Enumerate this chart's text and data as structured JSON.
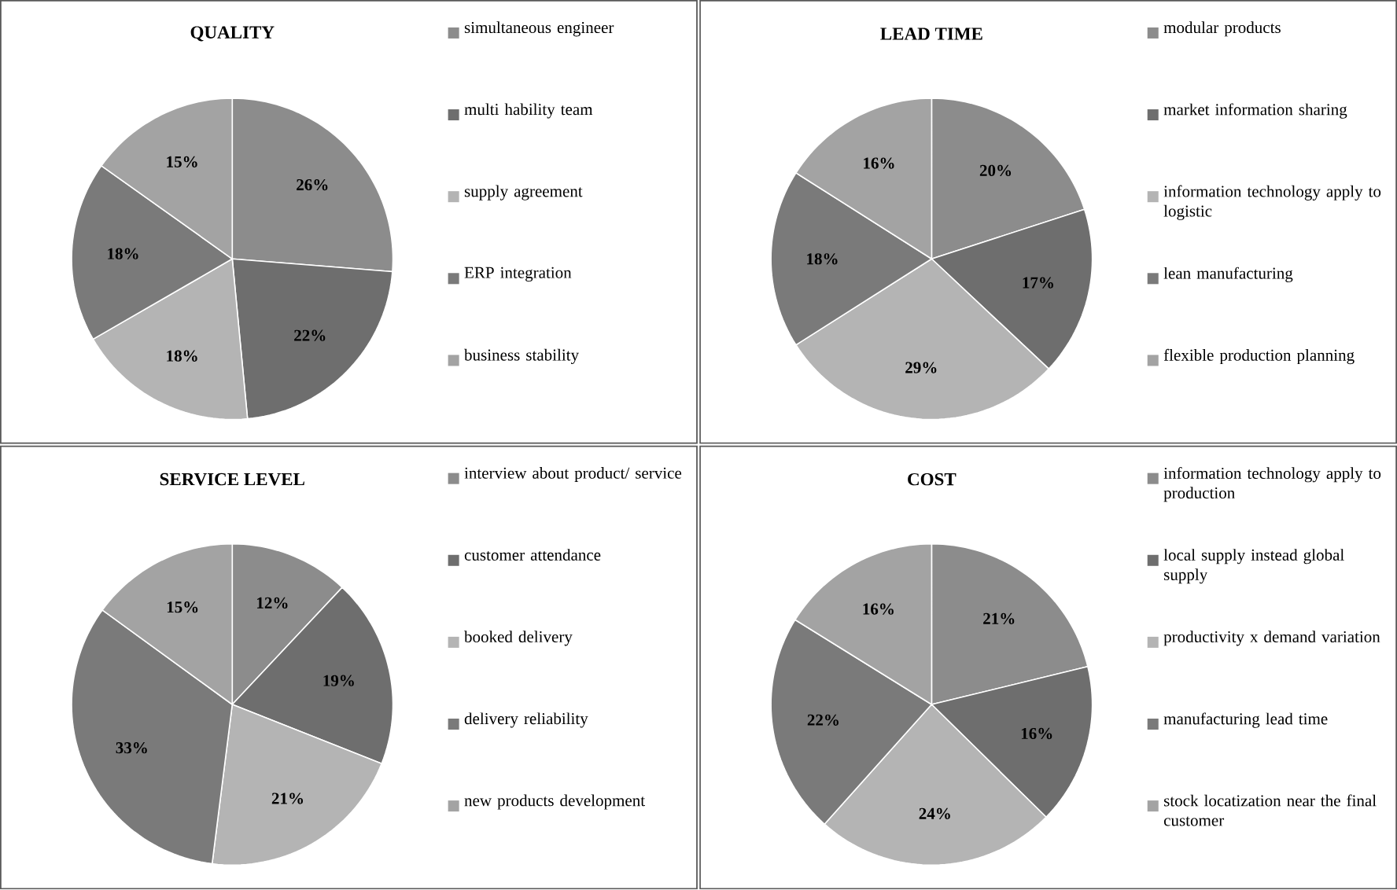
{
  "chart_data": [
    {
      "type": "pie",
      "title": "QUALITY",
      "categories": [
        "simultaneous engineer",
        "multi hability team",
        "supply agreement",
        "ERP integration",
        "business stability"
      ],
      "values": [
        26,
        22,
        18,
        18,
        15
      ],
      "value_labels": [
        "26%",
        "22%",
        "18%",
        "18%",
        "15%"
      ],
      "colors": [
        "#8c8c8c",
        "#6e6e6e",
        "#b4b4b4",
        "#7a7a7a",
        "#a3a3a3"
      ],
      "legend": "right"
    },
    {
      "type": "pie",
      "title": "LEAD TIME",
      "categories": [
        "modular products",
        "market information sharing",
        "information technology apply to logistic",
        "lean manufacturing",
        "flexible production planning"
      ],
      "values": [
        20,
        17,
        29,
        18,
        16
      ],
      "value_labels": [
        "20%",
        "17%",
        "29%",
        "18%",
        "16%"
      ],
      "colors": [
        "#8c8c8c",
        "#6e6e6e",
        "#b4b4b4",
        "#7a7a7a",
        "#a3a3a3"
      ],
      "legend": "right"
    },
    {
      "type": "pie",
      "title": "SERVICE LEVEL",
      "categories": [
        "interview about product/ service",
        "customer attendance",
        "booked delivery",
        "delivery reliability",
        "new products development"
      ],
      "values": [
        12,
        19,
        21,
        33,
        15
      ],
      "value_labels": [
        "12%",
        "19%",
        "21%",
        "33%",
        "15%"
      ],
      "colors": [
        "#8c8c8c",
        "#6e6e6e",
        "#b4b4b4",
        "#7a7a7a",
        "#a3a3a3"
      ],
      "legend": "right"
    },
    {
      "type": "pie",
      "title": "COST",
      "categories": [
        "information technology apply to production",
        "local supply instead global supply",
        "productivity x demand variation",
        "manufacturing lead time",
        "stock locatization near the final customer"
      ],
      "values": [
        21,
        16,
        24,
        22,
        16
      ],
      "value_labels": [
        "21%",
        "16%",
        "24%",
        "22%",
        "16%"
      ],
      "colors": [
        "#8c8c8c",
        "#6e6e6e",
        "#b4b4b4",
        "#7a7a7a",
        "#a3a3a3"
      ],
      "legend": "right"
    }
  ]
}
